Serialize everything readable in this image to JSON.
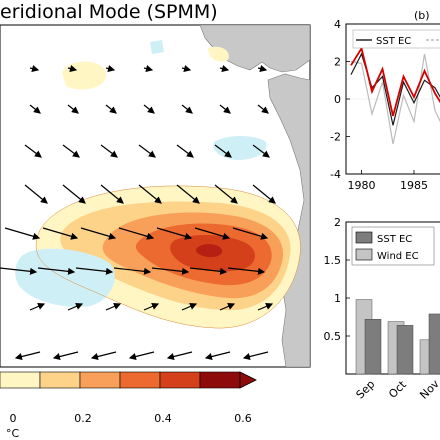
{
  "figure": {
    "title": "eridional Mode (SPMM)",
    "colorbar": {
      "ticks": [
        "0",
        "0.2",
        "0.4",
        "0.6"
      ],
      "unit": "°C",
      "levels": [
        0.1,
        0.2,
        0.3,
        0.4,
        0.5,
        0.6
      ],
      "colors": [
        "#fff6c4",
        "#fdd38a",
        "#f8a05a",
        "#ec6a2f",
        "#d3401a",
        "#8e0b0b"
      ]
    }
  },
  "chart_data": [
    {
      "type": "heatmap",
      "title": "eridional Mode (SPMM)",
      "description_units": "°C",
      "warm_anomaly_max": 0.55,
      "cold_anomaly_min": -0.12,
      "has_wind_vectors": true
    },
    {
      "type": "line",
      "panel_label": "(b)",
      "ylim": [
        -4,
        4
      ],
      "yticks": [
        "4",
        "2",
        "0",
        "-2",
        "-4"
      ],
      "xticks": [
        "1980",
        "1985"
      ],
      "x": [
        1979,
        1980,
        1981,
        1982,
        1983,
        1984,
        1985,
        1986,
        1987,
        1988
      ],
      "series": [
        {
          "name": "SST EC",
          "color": "#d40000",
          "values": [
            1.8,
            2.7,
            0.4,
            1.6,
            -0.9,
            1.2,
            0.1,
            1.5,
            0.3,
            -0.6
          ]
        },
        {
          "color": "#1a1a1a",
          "values": [
            1.3,
            2.4,
            0.6,
            1.2,
            -1.4,
            0.9,
            -0.2,
            1.0,
            0.6,
            -0.4
          ]
        },
        {
          "color": "#bbbbbb",
          "values": [
            2.0,
            1.9,
            -0.8,
            0.9,
            -2.4,
            0.2,
            -1.2,
            2.4,
            -0.6,
            -1.8
          ]
        }
      ],
      "legend_entries": [
        "SST EC"
      ]
    },
    {
      "type": "bar",
      "ylim": [
        0,
        2
      ],
      "yticks": [
        "2",
        "1.5",
        "1",
        "0.5"
      ],
      "categories": [
        "Sep",
        "Oct",
        "Nov"
      ],
      "series": [
        {
          "name": "SST EC",
          "color": "#7d7d7d",
          "values": [
            0.72,
            0.64,
            0.79
          ]
        },
        {
          "name": "Wind EC",
          "color": "#c4c4c4",
          "values": [
            0.98,
            0.69,
            0.45
          ]
        }
      ],
      "legend_entries": [
        "SST EC",
        "Wind EC"
      ]
    }
  ]
}
